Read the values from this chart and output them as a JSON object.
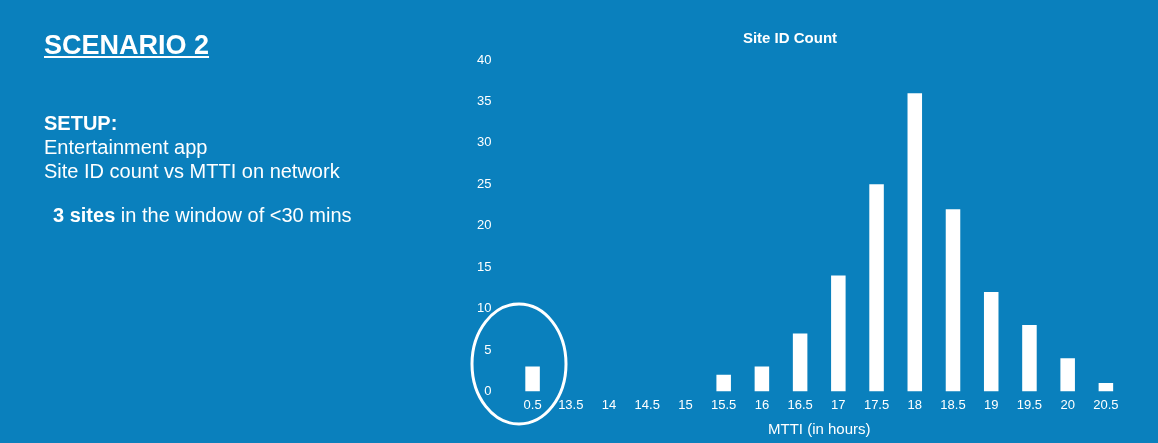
{
  "chart_data": [
    {
      "type": "other",
      "title": "SCENARIO 2",
      "annotations": [
        "SETUP:",
        "Entertainment app",
        "Site ID count vs MTTI on network",
        "3 sites",
        "in the window of <30 mins"
      ]
    },
    {
      "type": "bar",
      "title": "Site ID Count",
      "xlabel": "MTTI (in hours)",
      "categories": [
        "0.5",
        "13.5",
        "14",
        "14.5",
        "15",
        "15.5",
        "16",
        "16.5",
        "17",
        "17.5",
        "18",
        "18.5",
        "19",
        "19.5",
        "20",
        "20.5"
      ],
      "values": [
        3,
        0,
        0,
        0,
        0,
        2,
        3,
        7,
        14,
        25,
        36,
        22,
        12,
        8,
        4,
        1
      ],
      "color": "#ffffff",
      "ylim": [
        0,
        40
      ],
      "yticks": [
        0,
        5,
        10,
        15,
        20,
        25,
        30,
        35,
        40
      ],
      "grid": false,
      "legend": false
    }
  ]
}
